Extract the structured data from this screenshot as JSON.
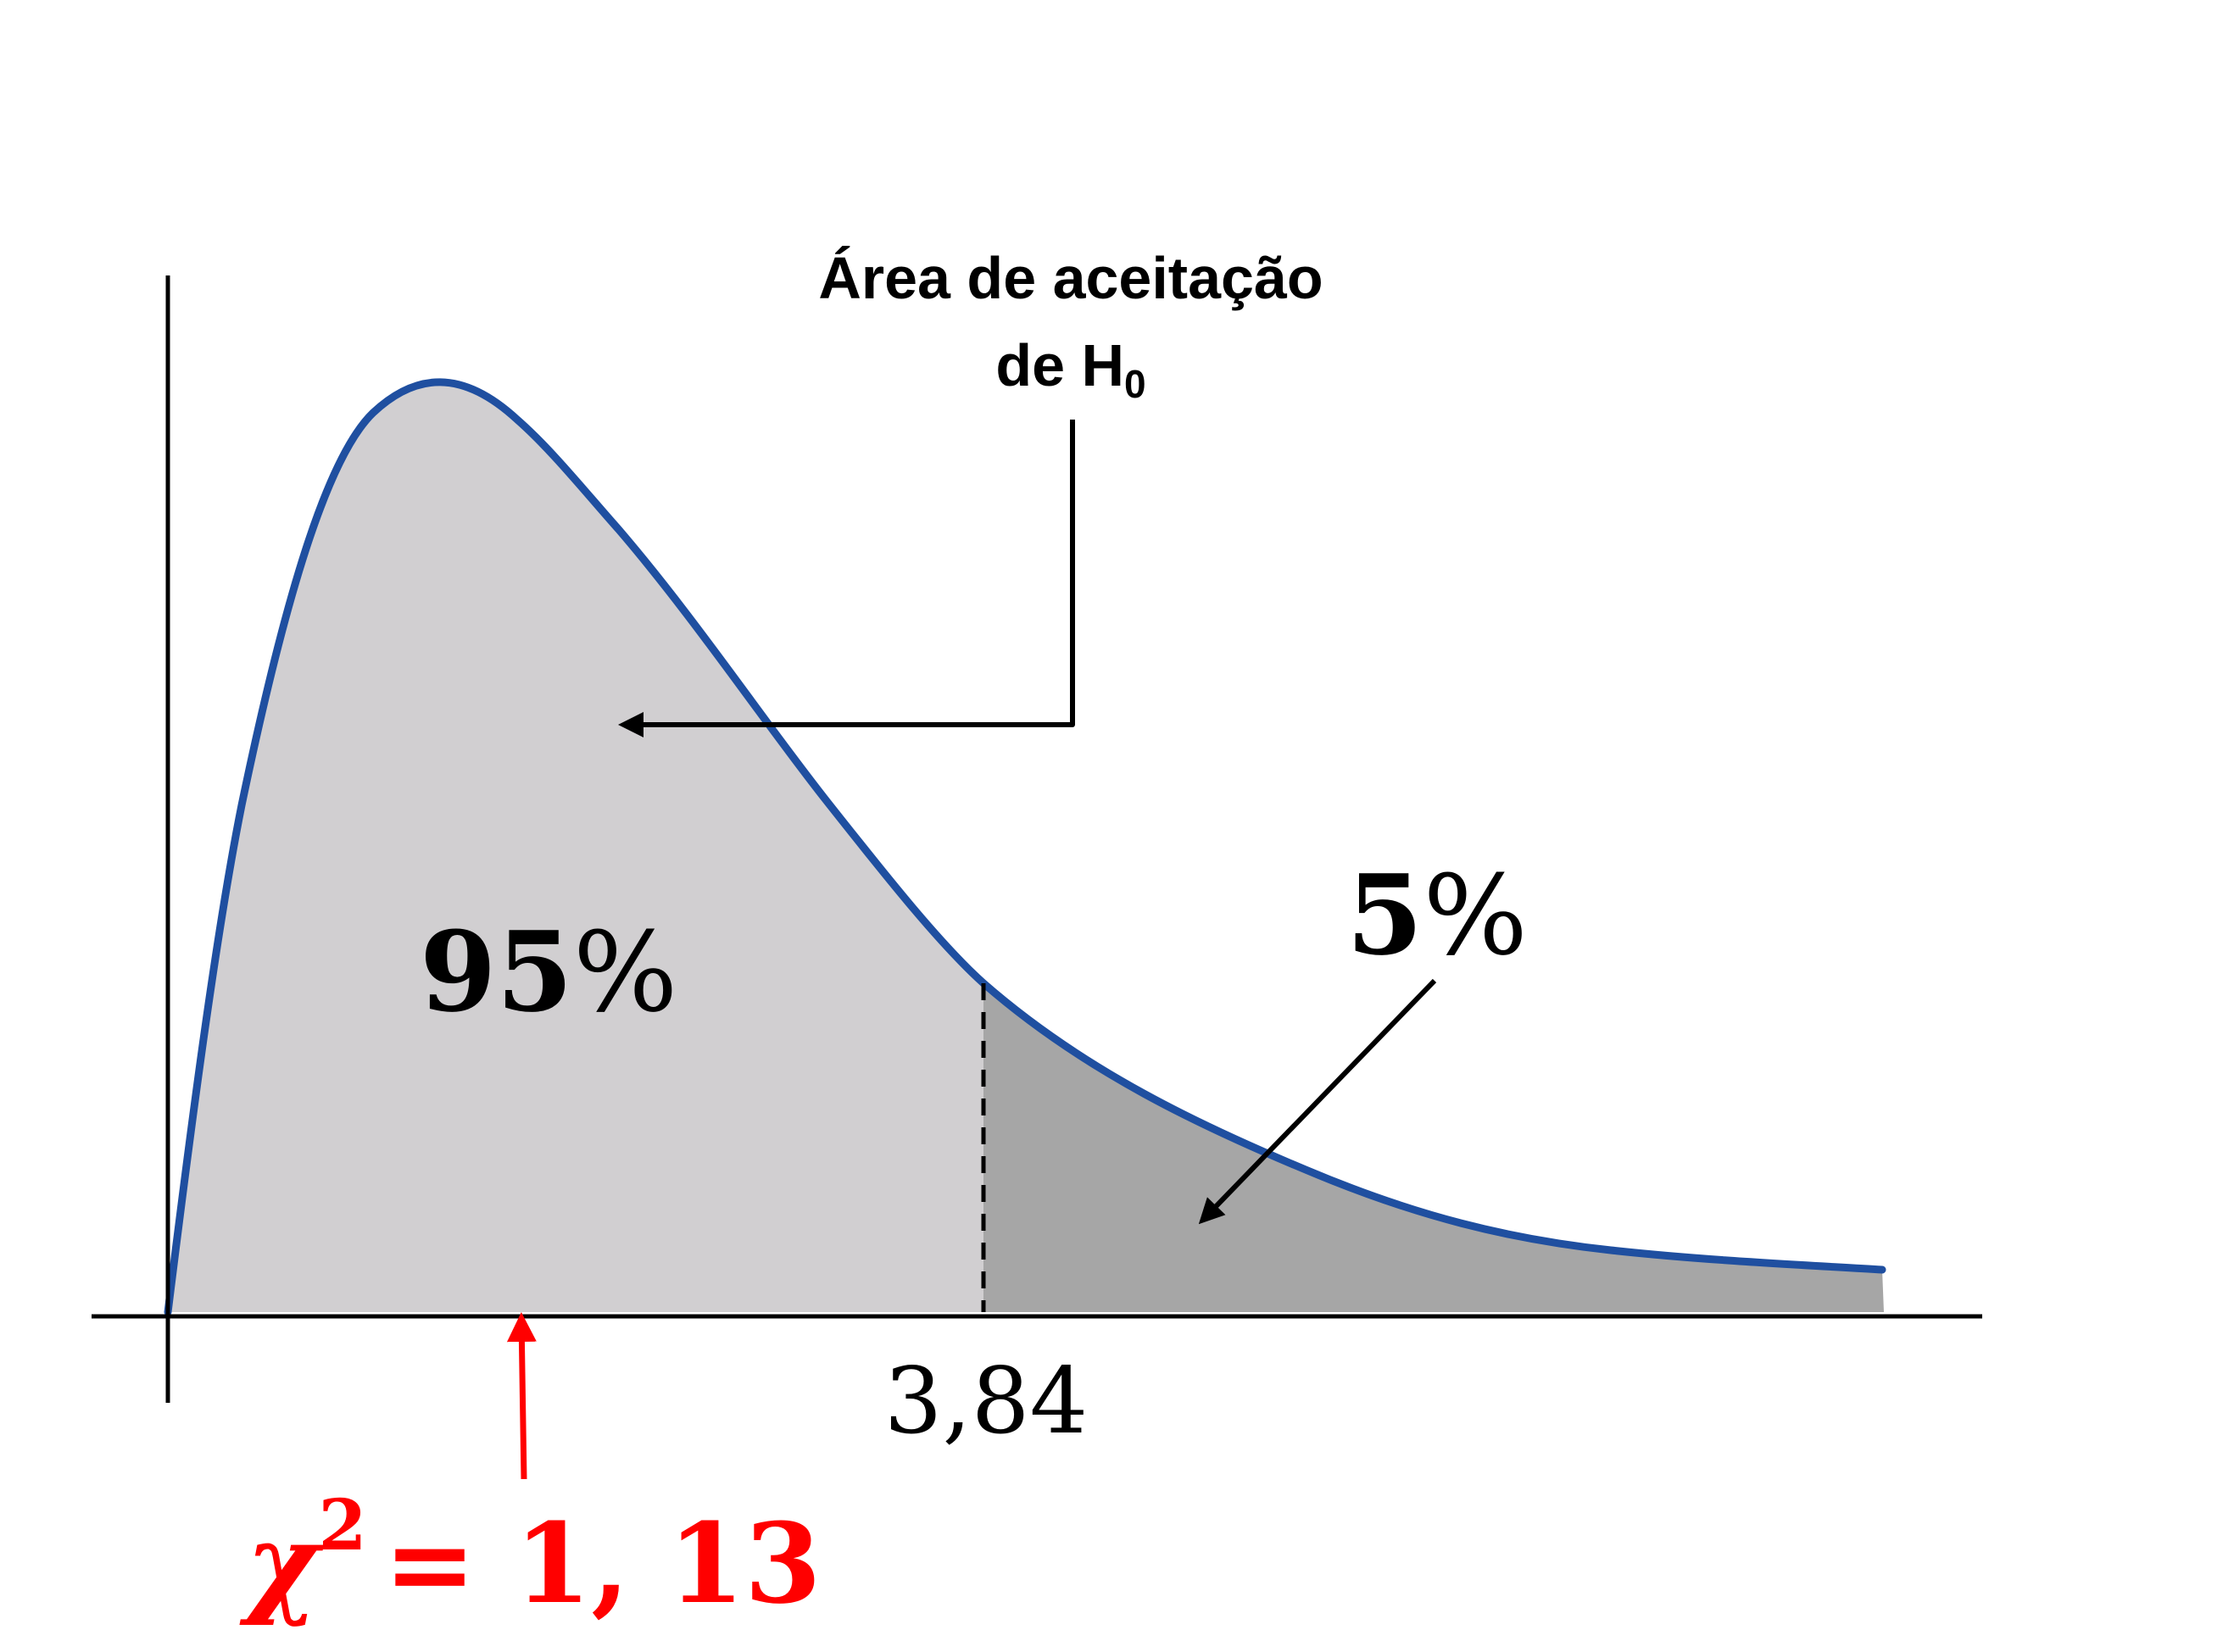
{
  "annotations": {
    "acceptance_line1": "Área de aceitação",
    "acceptance_line2_prefix": "de H",
    "acceptance_line2_sub": "0",
    "acceptance_percent_num": "95",
    "acceptance_percent_sign": "%",
    "rejection_percent_num": "5",
    "rejection_percent_sign": "%",
    "critical_value": "3,84",
    "test_stat_symbol": "χ",
    "test_stat_sup": "2",
    "test_stat_eq": "= 1, 13"
  },
  "colors": {
    "curve": "#1f4fa0",
    "acceptance_fill": "#d1cfd1",
    "rejection_fill": "#a6a6a6",
    "axis": "#000000",
    "highlight": "#ff0000"
  },
  "chart_data": {
    "type": "area",
    "distribution": "chi-square",
    "critical_value": 3.84,
    "test_statistic": 1.13,
    "acceptance_area_percent": 95,
    "rejection_area_percent": 5
  }
}
